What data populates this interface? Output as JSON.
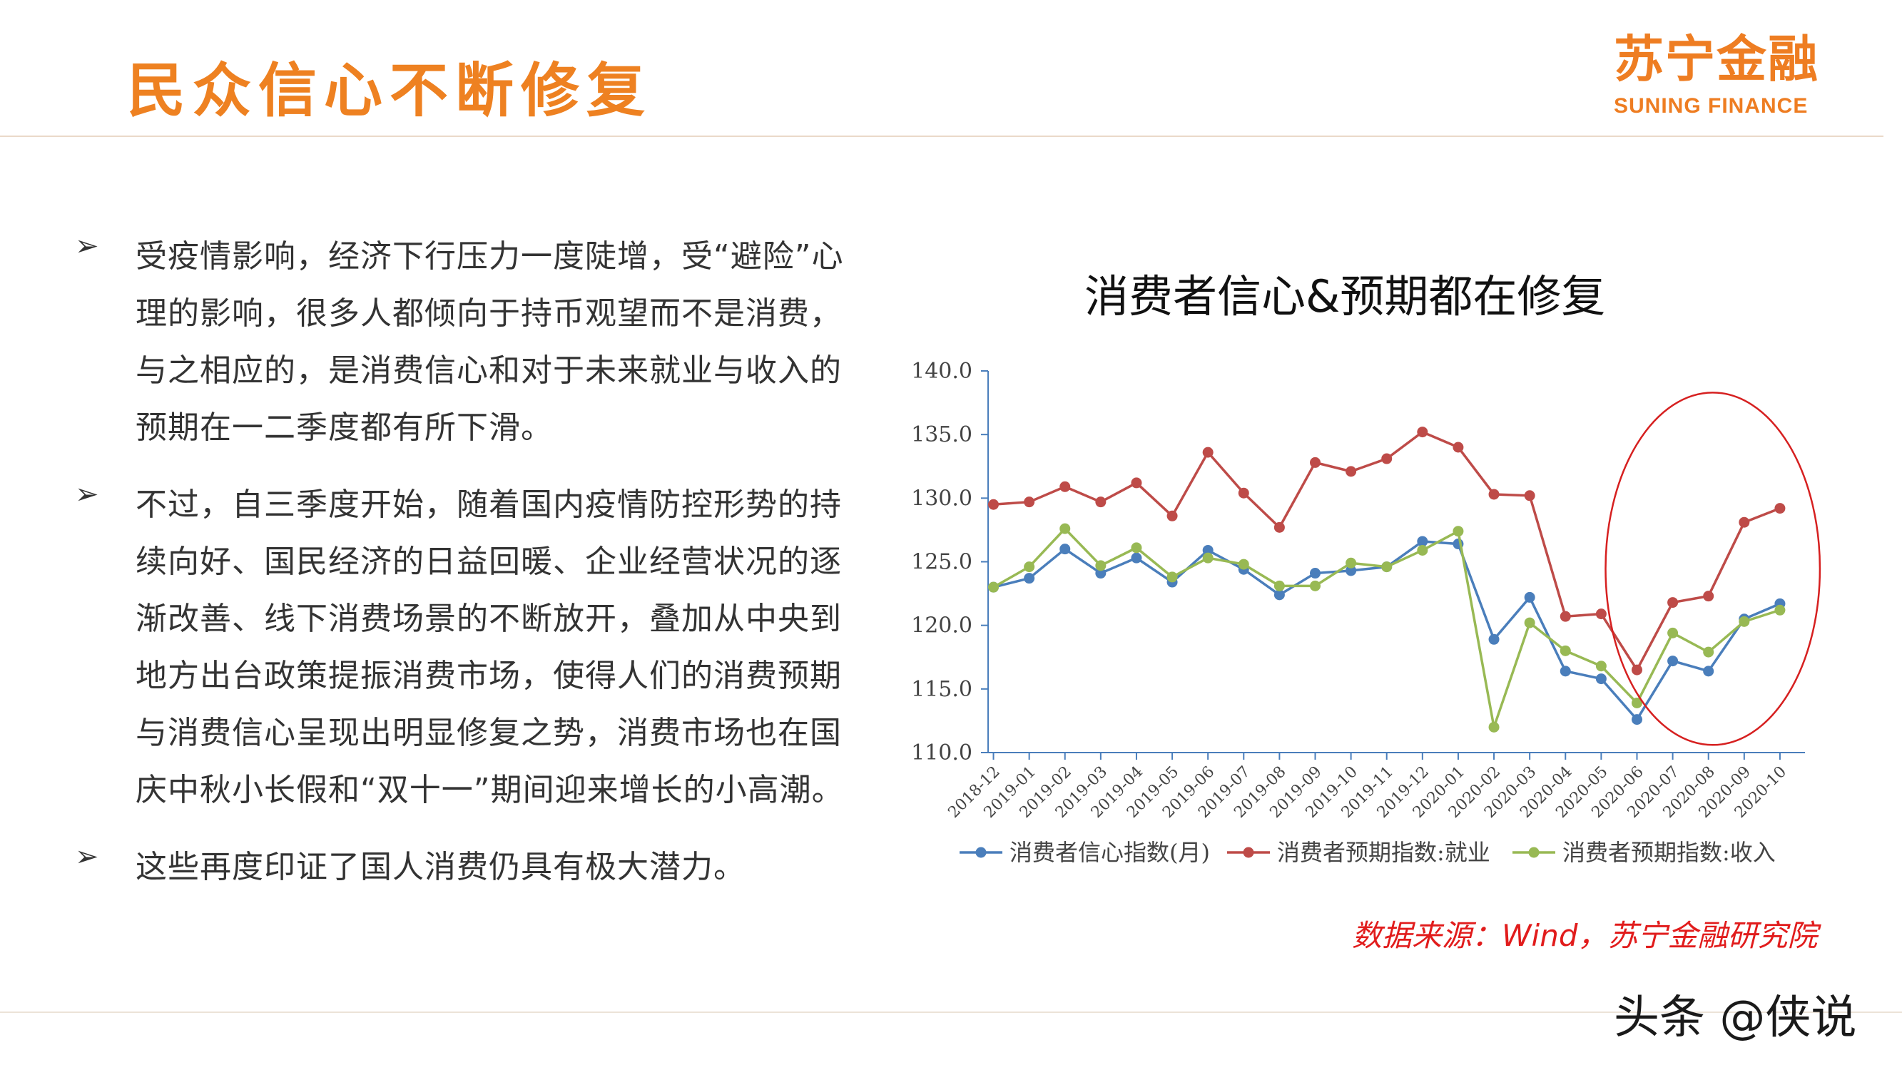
{
  "header": {
    "title": "民众信心不断修复",
    "logo_cn": "苏宁金融",
    "logo_en": "SUNING FINANCE"
  },
  "bullets": [
    {
      "text": "受疫情影响，经济下行压力一度陡增，受“避险”心理的影响，很多人都倾向于持币观望而不是消费，与之相应的，是消费信心和对于未来就业与收入的预期在一二季度都有所下滑。"
    },
    {
      "text": "不过，自三季度开始，随着国内疫情防控形势的持续向好、国民经济的日益回暖、企业经营状况的逐渐改善、线下消费场景的不断放开，叠加从中央到地方出台政策提振消费市场，使得人们的消费预期与消费信心呈现出明显修复之势，消费市场也在国庆中秋小长假和“双十一”期间迎来增长的小高潮。"
    },
    {
      "text": "这些再度印证了国人消费仍具有极大潜力。"
    }
  ],
  "bullet_icon": "arrow-bullet-icon",
  "source": "数据来源：Wind，苏宁金融研究院",
  "watermark": "头条 @侠说",
  "chart_data": {
    "type": "line",
    "title": "消费者信心&预期都在修复",
    "categories": [
      "2018-12",
      "2019-01",
      "2019-02",
      "2019-03",
      "2019-04",
      "2019-05",
      "2019-06",
      "2019-07",
      "2019-08",
      "2019-09",
      "2019-10",
      "2019-11",
      "2019-12",
      "2020-01",
      "2020-02",
      "2020-03",
      "2020-04",
      "2020-05",
      "2020-06",
      "2020-07",
      "2020-08",
      "2020-09",
      "2020-10"
    ],
    "ylim": [
      110,
      140
    ],
    "yticks": [
      "110.0",
      "115.0",
      "120.0",
      "125.0",
      "130.0",
      "135.0",
      "140.0"
    ],
    "grid": false,
    "legend_position": "bottom",
    "series": [
      {
        "name": "消费者信心指数(月)",
        "color": "#4a7ebb",
        "values": [
          123.0,
          123.7,
          126.0,
          124.1,
          125.3,
          123.4,
          125.9,
          124.4,
          122.4,
          124.1,
          124.3,
          124.6,
          126.6,
          126.4,
          118.9,
          122.2,
          116.4,
          115.8,
          112.6,
          117.2,
          116.4,
          120.5,
          121.7
        ]
      },
      {
        "name": "消费者预期指数:就业",
        "color": "#be4b48",
        "values": [
          129.5,
          129.7,
          130.9,
          129.7,
          131.2,
          128.6,
          133.6,
          130.4,
          127.7,
          132.8,
          132.1,
          133.1,
          135.2,
          134.0,
          130.3,
          130.2,
          120.7,
          120.9,
          116.5,
          121.8,
          122.3,
          128.1,
          129.2
        ]
      },
      {
        "name": "消费者预期指数:收入",
        "color": "#98b954",
        "values": [
          123.0,
          124.6,
          127.6,
          124.7,
          126.1,
          123.8,
          125.3,
          124.8,
          123.1,
          123.1,
          124.9,
          124.6,
          125.9,
          127.4,
          112.0,
          120.2,
          118.0,
          116.8,
          113.9,
          119.4,
          117.9,
          120.3,
          121.2
        ]
      }
    ],
    "annotation": "red-ellipse-highlight"
  }
}
